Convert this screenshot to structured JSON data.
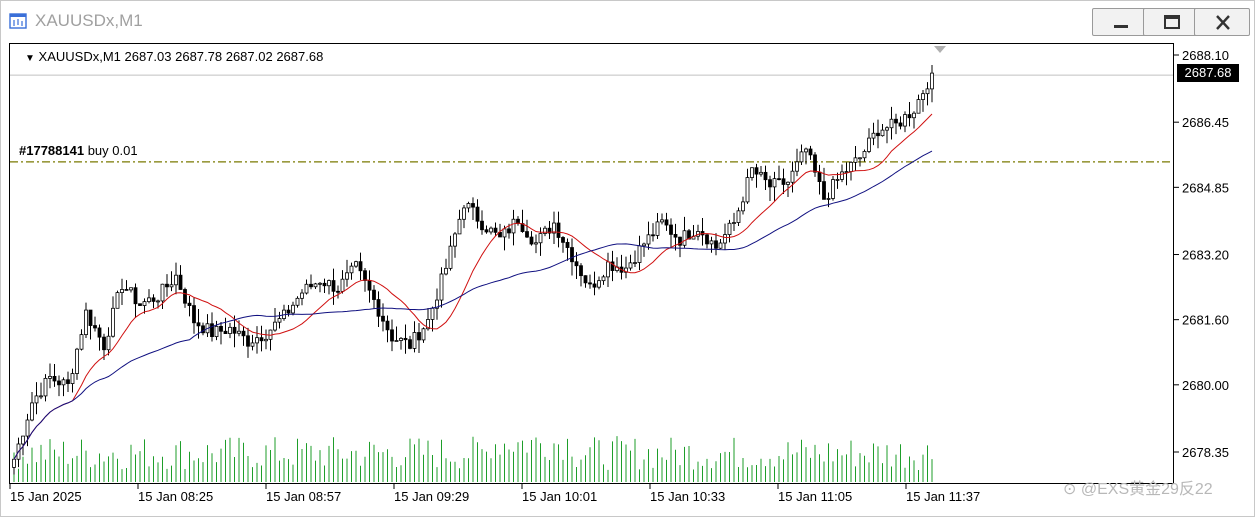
{
  "window": {
    "title": "XAUUSDx,M1",
    "icon": "chart-window-icon",
    "controls": [
      "minimize-icon",
      "maximize-icon",
      "close-icon"
    ]
  },
  "header": {
    "symbol": "XAUUSDx,M1",
    "ohlc": "2687.03 2687.78 2687.02 2687.68"
  },
  "order": {
    "ticket": "#17788141",
    "side": "buy",
    "volume": "0.01",
    "price": 2685.5,
    "color": "#7a7a00"
  },
  "current_price": {
    "label": "2687.68",
    "value": 2687.68
  },
  "watermark": "⊙ @EXS黄金29反22",
  "chart_data": {
    "type": "candlestick",
    "symbol": "XAUUSDx",
    "timeframe": "M1",
    "y_ticks": [
      "2688.10",
      "2686.45",
      "2684.85",
      "2683.20",
      "2681.60",
      "2680.00",
      "2678.35"
    ],
    "y_tick_values": [
      2688.1,
      2686.45,
      2684.85,
      2683.2,
      2681.6,
      2680.0,
      2678.35
    ],
    "x_ticks": [
      "15 Jan 2025",
      "15 Jan 08:25",
      "15 Jan 08:57",
      "15 Jan 09:29",
      "15 Jan 10:01",
      "15 Jan 10:33",
      "15 Jan 11:05",
      "15 Jan 11:37"
    ],
    "close_path": [
      [
        0,
        2678.2
      ],
      [
        4,
        2679.6
      ],
      [
        8,
        2680.2
      ],
      [
        12,
        2680.0
      ],
      [
        16,
        2681.8
      ],
      [
        20,
        2681.0
      ],
      [
        24,
        2682.5
      ],
      [
        28,
        2682.0
      ],
      [
        32,
        2682.2
      ],
      [
        36,
        2682.7
      ],
      [
        40,
        2681.6
      ],
      [
        44,
        2681.3
      ],
      [
        48,
        2681.4
      ],
      [
        52,
        2681.1
      ],
      [
        56,
        2681.3
      ],
      [
        60,
        2681.7
      ],
      [
        64,
        2682.3
      ],
      [
        68,
        2682.6
      ],
      [
        72,
        2682.4
      ],
      [
        76,
        2682.9
      ],
      [
        80,
        2682.1
      ],
      [
        84,
        2681.2
      ],
      [
        88,
        2681.0
      ],
      [
        92,
        2681.6
      ],
      [
        96,
        2682.9
      ],
      [
        100,
        2684.5
      ],
      [
        104,
        2684.0
      ],
      [
        108,
        2683.6
      ],
      [
        112,
        2684.1
      ],
      [
        116,
        2683.5
      ],
      [
        120,
        2684.0
      ],
      [
        124,
        2683.2
      ],
      [
        128,
        2682.4
      ],
      [
        132,
        2683.0
      ],
      [
        136,
        2682.9
      ],
      [
        140,
        2683.5
      ],
      [
        144,
        2684.0
      ],
      [
        148,
        2683.6
      ],
      [
        152,
        2683.9
      ],
      [
        156,
        2683.4
      ],
      [
        160,
        2684.0
      ],
      [
        164,
        2685.3
      ],
      [
        168,
        2684.9
      ],
      [
        172,
        2685.0
      ],
      [
        176,
        2685.8
      ],
      [
        180,
        2684.6
      ],
      [
        184,
        2685.2
      ],
      [
        188,
        2685.6
      ],
      [
        192,
        2686.3
      ],
      [
        196,
        2686.4
      ],
      [
        200,
        2686.8
      ],
      [
        204,
        2687.68
      ]
    ],
    "volume_max_relative": 1.0
  }
}
